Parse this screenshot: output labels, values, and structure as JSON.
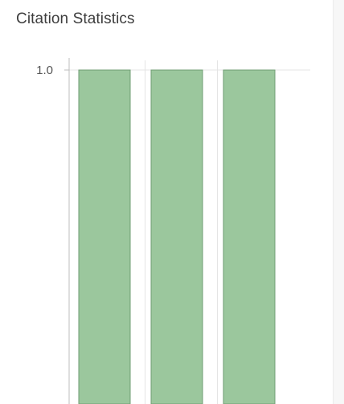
{
  "section": {
    "title": "Citation Statistics"
  },
  "chart_data": {
    "type": "bar",
    "categories": [
      "",
      "",
      ""
    ],
    "values": [
      1.0,
      1.0,
      1.0
    ],
    "ylim": [
      0,
      1.0
    ],
    "yticks": [
      "1.0"
    ],
    "grid": true,
    "colors": {
      "bar_fill": "#9bc79d",
      "bar_stroke": "#6f9e73",
      "grid": "#e4e4e4",
      "axis": "#bdbdbd"
    }
  },
  "colors": {
    "title": "#3d3d3d",
    "rail": "#f7f7f7"
  }
}
